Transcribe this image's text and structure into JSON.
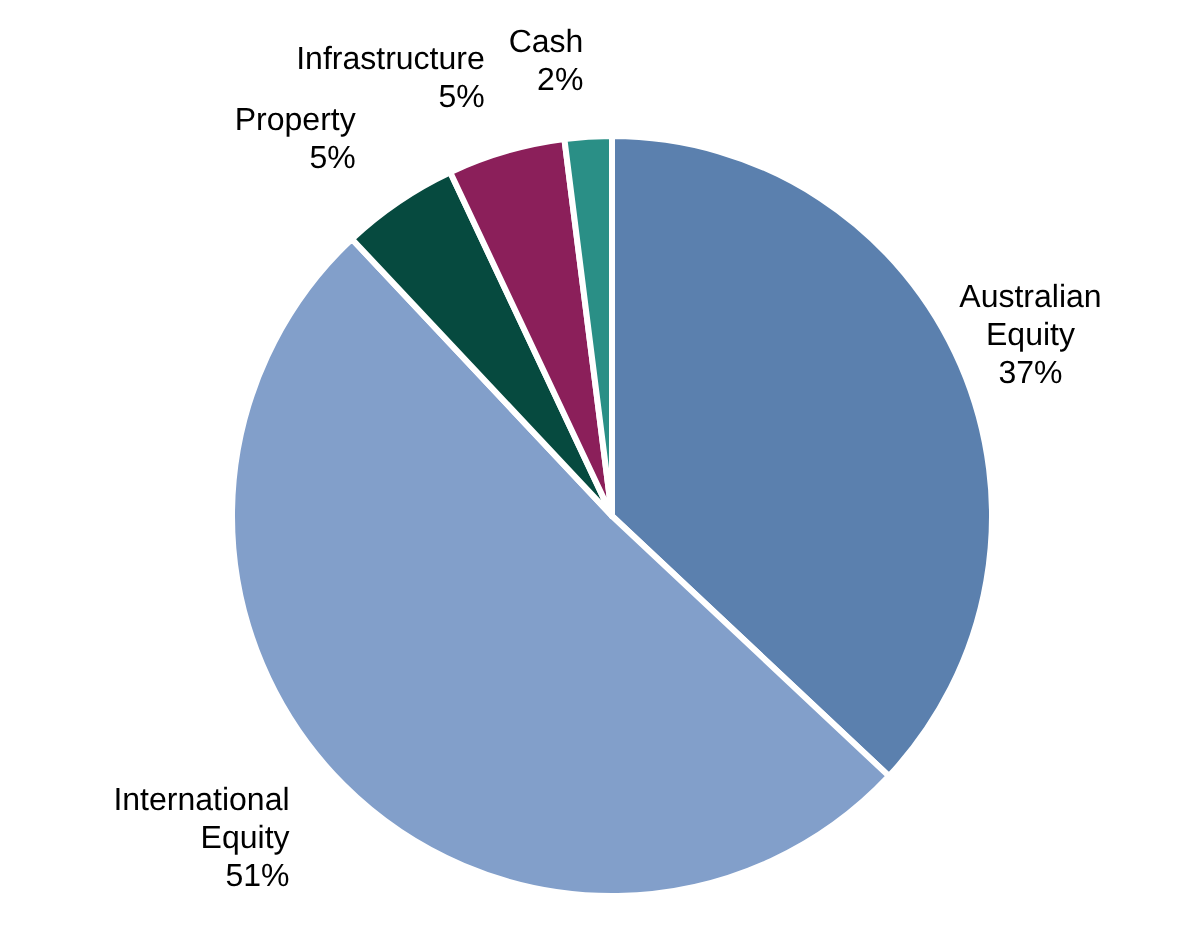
{
  "chart_data": {
    "type": "pie",
    "categories": [
      "Australian Equity",
      "International Equity",
      "Property",
      "Infrastructure",
      "Cash"
    ],
    "values": [
      37,
      51,
      5,
      5,
      2
    ],
    "value_labels": [
      "37%",
      "51%",
      "5%",
      "5%",
      "2%"
    ],
    "colors": [
      "#5b80ae",
      "#829fca",
      "#064a3f",
      "#8b1f5a",
      "#2a8f86"
    ]
  }
}
